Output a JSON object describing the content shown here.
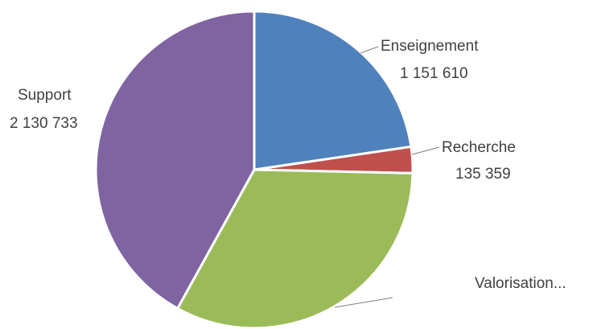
{
  "chart_data": {
    "type": "pie",
    "title": "",
    "slices": [
      {
        "label": "Enseignement",
        "value": 1151610,
        "value_text": "1 151 610",
        "color": "#4F81BD"
      },
      {
        "label": "Recherche",
        "value": 135359,
        "value_text": "135 359",
        "color": "#C0504D"
      },
      {
        "label": "Valorisation...",
        "value": 1660000,
        "value_text": "",
        "color": "#9BBB59"
      },
      {
        "label": "Support",
        "value": 2130733,
        "value_text": "2 130 733",
        "color": "#8064A2"
      }
    ],
    "start_angle": "12 o'clock",
    "direction": "clockwise",
    "legend": "none",
    "data_labels": "outside, with leader lines"
  }
}
